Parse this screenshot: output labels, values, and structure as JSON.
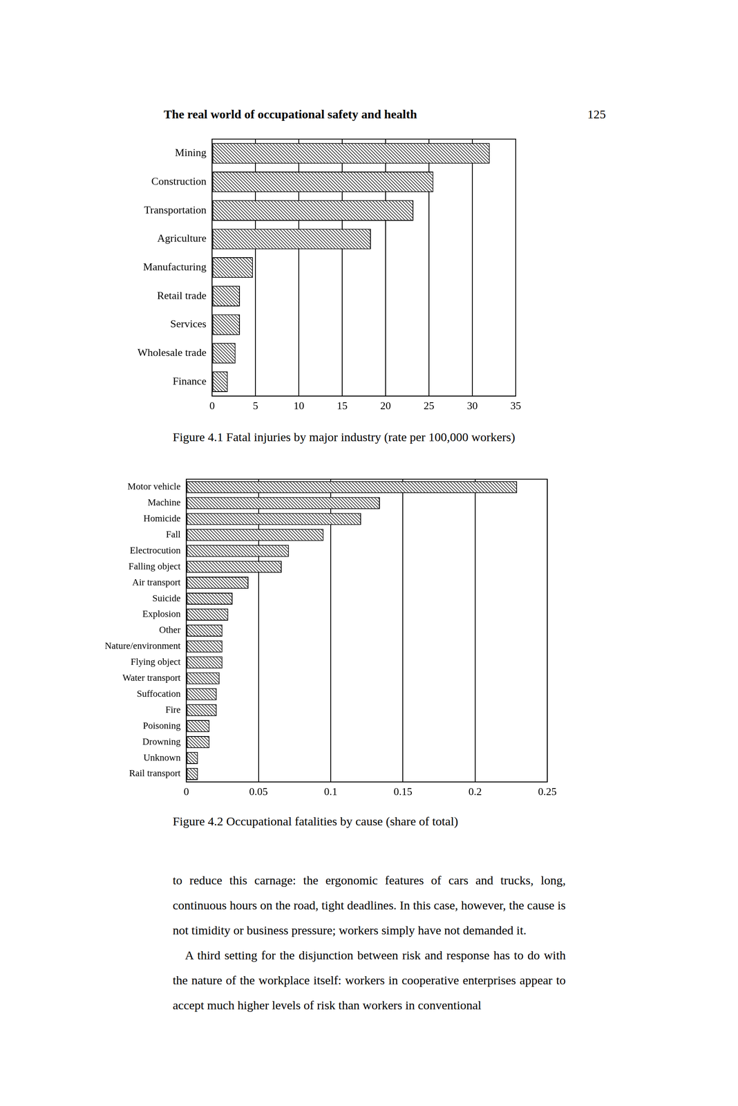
{
  "page": {
    "running_head": "The real world of occupational safety and health",
    "page_number": "125"
  },
  "chart_data": [
    {
      "type": "bar",
      "title": "Figure 4.1 Fatal injuries by major industry (rate per 100,000 workers)",
      "orientation": "horizontal",
      "categories": [
        "Mining",
        "Construction",
        "Transportation",
        "Agriculture",
        "Manufacturing",
        "Retail trade",
        "Services",
        "Wholesale trade",
        "Finance"
      ],
      "values": [
        32,
        25.5,
        23.2,
        18.3,
        4.7,
        3.2,
        3.2,
        2.7,
        1.8
      ],
      "color": "#000000",
      "xlim": [
        0,
        35
      ],
      "xticks": [
        0,
        5,
        10,
        15,
        20,
        25,
        30,
        35
      ],
      "grid": true
    },
    {
      "type": "bar",
      "title": "Figure 4.2 Occupational fatalities by cause (share of total)",
      "orientation": "horizontal",
      "categories": [
        "Motor vehicle",
        "Machine",
        "Homicide",
        "Fall",
        "Electrocution",
        "Falling object",
        "Air transport",
        "Suicide",
        "Explosion",
        "Other",
        "Nature/environment",
        "Flying object",
        "Water transport",
        "Suffocation",
        "Fire",
        "Poisoning",
        "Drowning",
        "Unknown",
        "Rail transport"
      ],
      "values": [
        0.229,
        0.134,
        0.121,
        0.095,
        0.071,
        0.066,
        0.043,
        0.032,
        0.029,
        0.025,
        0.025,
        0.025,
        0.023,
        0.021,
        0.021,
        0.016,
        0.016,
        0.008,
        0.008
      ],
      "color": "#000000",
      "xlim": [
        0,
        0.25
      ],
      "xticks": [
        0,
        0.05,
        0.1,
        0.15,
        0.2,
        0.25
      ],
      "grid": true
    }
  ],
  "body": [
    "to reduce this carnage: the ergonomic features of cars and trucks, long, continuous hours on the road, tight deadlines. In this case, however, the cause is not timidity or business pressure; workers simply have not demanded it.",
    "A third setting for the disjunction between risk and response has to do with the nature of the workplace itself: workers in cooperative enterprises appear to accept much higher levels of risk than workers in conventional"
  ]
}
